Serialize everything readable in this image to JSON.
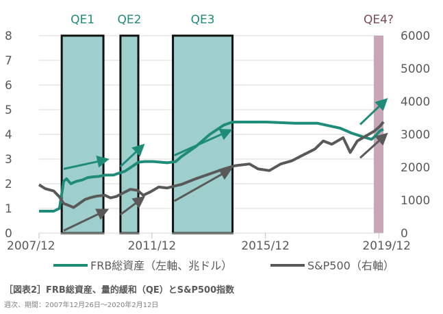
{
  "chart_data": {
    "type": "line",
    "title": "",
    "caption": "［図表2］FRB総資産、量的緩和（QE）とS&P500指数",
    "subcaption": "週次、期間：2007年12月26日～2020年2月12日",
    "x_tick_labels": [
      "2007/12",
      "2011/12",
      "2015/12",
      "2019/12"
    ],
    "x_ticks": [
      2007.98,
      2011.96,
      2015.96,
      2019.96
    ],
    "xlim": [
      2007.98,
      2020.12
    ],
    "y_left": {
      "ylim": [
        0,
        8
      ],
      "ticks": [
        "0",
        "1",
        "2",
        "3",
        "4",
        "5",
        "6",
        "7",
        "8"
      ]
    },
    "y_right": {
      "ylim": [
        0,
        6000
      ],
      "ticks": [
        "0",
        "1000",
        "2000",
        "3000",
        "4000",
        "5000",
        "6000"
      ]
    },
    "grid": true,
    "legend_position": "bottom",
    "qe_periods": [
      {
        "label": "QE1",
        "start": 2008.78,
        "end": 2010.25,
        "color": "#9fcfcc"
      },
      {
        "label": "QE2",
        "start": 2010.85,
        "end": 2011.48,
        "color": "#9fcfcc"
      },
      {
        "label": "QE3",
        "start": 2012.7,
        "end": 2014.8,
        "color": "#9fcfcc"
      },
      {
        "label": "QE4?",
        "start": 2019.78,
        "end": 2020.12,
        "color": "#c7a7b7"
      }
    ],
    "series": [
      {
        "name": "FRB総資産（左軸、兆ドル）",
        "axis": "left",
        "color": "#1e8c78",
        "x": [
          2007.98,
          2008.5,
          2008.7,
          2008.85,
          2008.95,
          2009.1,
          2009.3,
          2009.5,
          2009.7,
          2009.9,
          2010.1,
          2010.3,
          2010.6,
          2010.85,
          2011.0,
          2011.2,
          2011.48,
          2011.7,
          2012.0,
          2012.5,
          2012.8,
          2013.0,
          2013.5,
          2014.0,
          2014.5,
          2014.8,
          2015.0,
          2016.0,
          2017.0,
          2017.8,
          2018.2,
          2018.6,
          2019.0,
          2019.4,
          2019.7,
          2019.85,
          2020.0,
          2020.12
        ],
        "values": [
          0.89,
          0.89,
          1.0,
          2.1,
          2.2,
          2.0,
          2.1,
          2.15,
          2.25,
          2.28,
          2.3,
          2.35,
          2.35,
          2.45,
          2.5,
          2.65,
          2.87,
          2.9,
          2.9,
          2.85,
          2.9,
          3.1,
          3.5,
          4.0,
          4.38,
          4.5,
          4.5,
          4.5,
          4.45,
          4.45,
          4.35,
          4.25,
          4.05,
          3.9,
          3.8,
          3.95,
          4.15,
          4.2
        ]
      },
      {
        "name": "S&P500（右軸）",
        "axis": "right",
        "color": "#595959",
        "x": [
          2007.98,
          2008.2,
          2008.5,
          2008.7,
          2008.85,
          2009.0,
          2009.2,
          2009.4,
          2009.6,
          2009.8,
          2010.0,
          2010.3,
          2010.5,
          2010.7,
          2010.9,
          2011.2,
          2011.45,
          2011.65,
          2011.9,
          2012.2,
          2012.5,
          2012.8,
          2013.0,
          2013.5,
          2014.0,
          2014.5,
          2014.9,
          2015.4,
          2015.7,
          2016.1,
          2016.5,
          2016.9,
          2017.3,
          2017.7,
          2018.0,
          2018.3,
          2018.7,
          2018.95,
          2019.2,
          2019.5,
          2019.8,
          2020.0,
          2020.12
        ],
        "values": [
          1470,
          1350,
          1280,
          1100,
          900,
          850,
          780,
          900,
          1020,
          1080,
          1120,
          1150,
          1070,
          1110,
          1200,
          1330,
          1300,
          1150,
          1250,
          1400,
          1370,
          1440,
          1480,
          1650,
          1800,
          1950,
          2050,
          2100,
          1950,
          1900,
          2100,
          2200,
          2380,
          2550,
          2800,
          2700,
          2900,
          2450,
          2800,
          2950,
          3100,
          3250,
          3380
        ]
      }
    ],
    "arrows": [
      {
        "color": "#1e8c78",
        "x1": 2008.85,
        "y1": 2.6,
        "x2": 2010.25,
        "y2": 2.95,
        "axis": "left"
      },
      {
        "color": "#1e8c78",
        "x1": 2010.85,
        "y1": 2.7,
        "x2": 2011.55,
        "y2": 3.45,
        "axis": "left"
      },
      {
        "color": "#1e8c78",
        "x1": 2012.75,
        "y1": 3.15,
        "x2": 2014.6,
        "y2": 4.1,
        "axis": "left"
      },
      {
        "color": "#1e8c78",
        "x1": 2019.3,
        "y1": 4.4,
        "x2": 2020.12,
        "y2": 5.3,
        "axis": "left"
      },
      {
        "color": "#595959",
        "x1": 2008.85,
        "y1": 0.1,
        "x2": 2010.25,
        "y2": 0.87,
        "axis": "left"
      },
      {
        "color": "#595959",
        "x1": 2010.85,
        "y1": 0.75,
        "x2": 2011.55,
        "y2": 1.35,
        "axis": "left"
      },
      {
        "color": "#595959",
        "x1": 2012.75,
        "y1": 1.3,
        "x2": 2014.6,
        "y2": 2.5,
        "axis": "left"
      },
      {
        "color": "#595959",
        "x1": 2019.3,
        "y1": 3.05,
        "x2": 2020.12,
        "y2": 3.9,
        "axis": "left"
      }
    ]
  }
}
